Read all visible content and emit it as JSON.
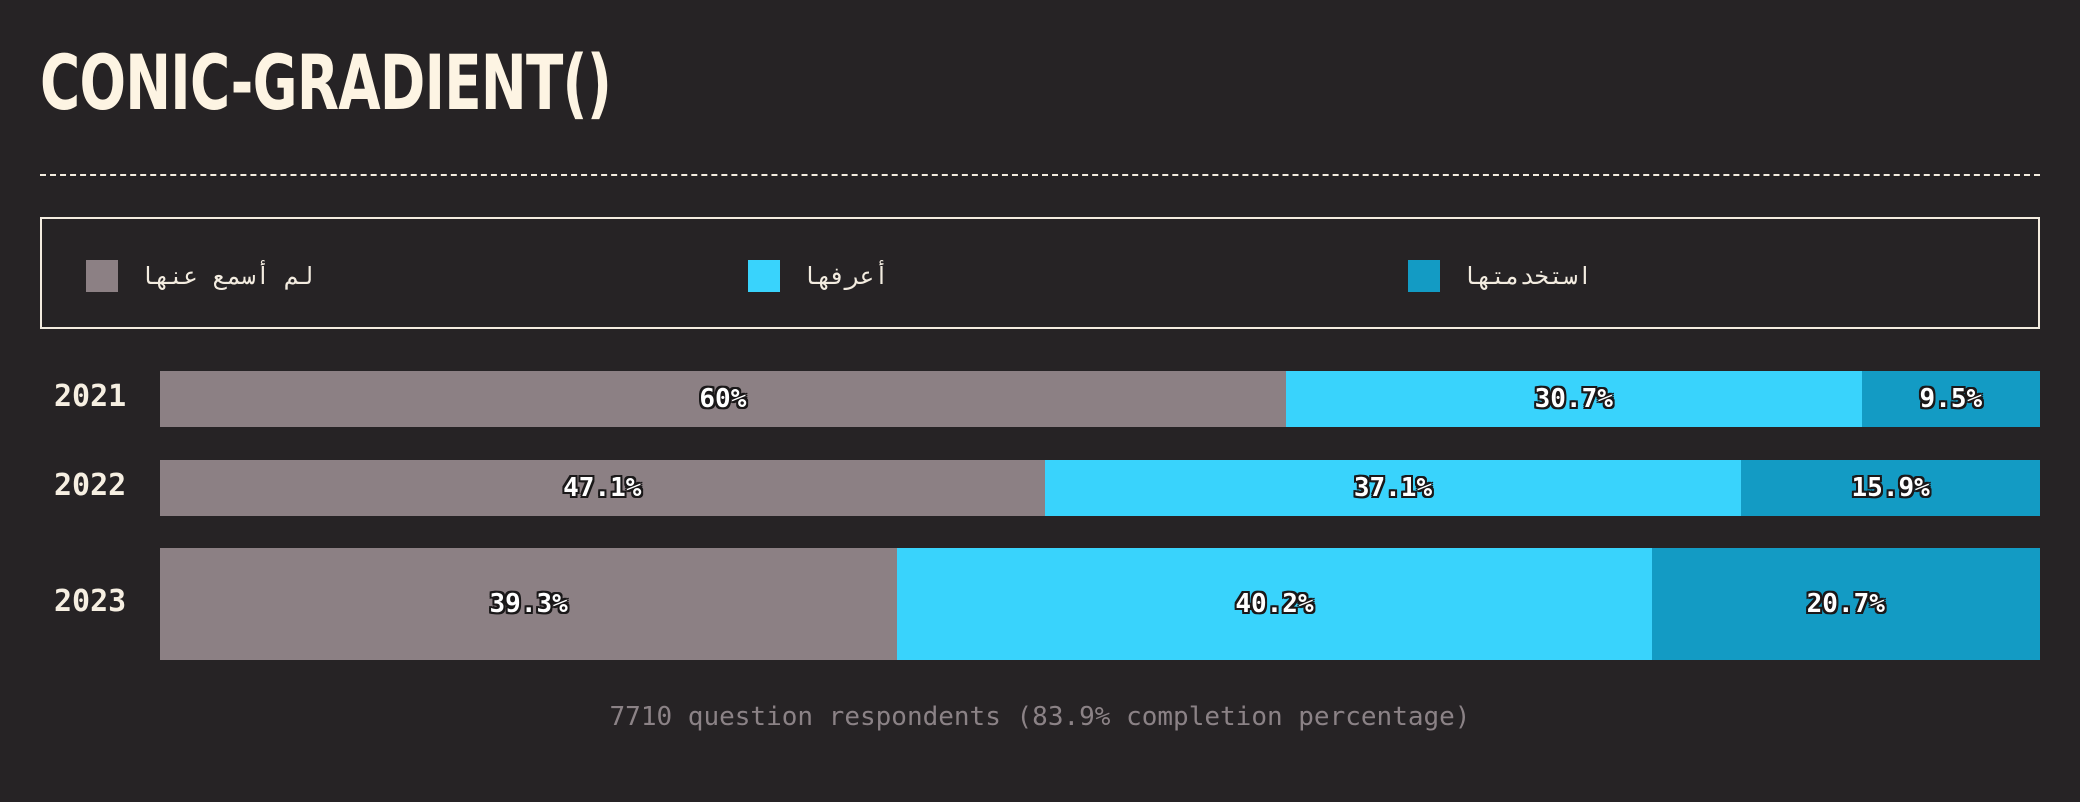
{
  "title": "CONIC-GRADIENT()",
  "legend": [
    {
      "label": "لم أسمع عنها",
      "color": "#8c8084"
    },
    {
      "label": "أعرفها",
      "color": "#39d3fc"
    },
    {
      "label": "استخدمتها",
      "color": "#139bc4"
    }
  ],
  "chart_data": {
    "type": "bar",
    "orientation": "horizontal",
    "stacked": true,
    "normalized": true,
    "categories": [
      "2021",
      "2022",
      "2023"
    ],
    "series": [
      {
        "name": "لم أسمع عنها",
        "color": "#8c8084",
        "values": [
          60,
          47.1,
          39.3
        ]
      },
      {
        "name": "أعرفها",
        "color": "#39d3fc",
        "values": [
          30.7,
          37.1,
          40.2
        ]
      },
      {
        "name": "استخدمتها",
        "color": "#139bc4",
        "values": [
          9.5,
          15.9,
          20.7
        ]
      }
    ],
    "data_labels": [
      [
        "60%",
        "30.7%",
        "9.5%"
      ],
      [
        "47.1%",
        "37.1%",
        "15.9%"
      ],
      [
        "39.3%",
        "40.2%",
        "20.7%"
      ]
    ],
    "xlim": [
      0,
      100
    ],
    "grid": false
  },
  "footnote": "7710 question respondents (83.9% completion percentage)"
}
